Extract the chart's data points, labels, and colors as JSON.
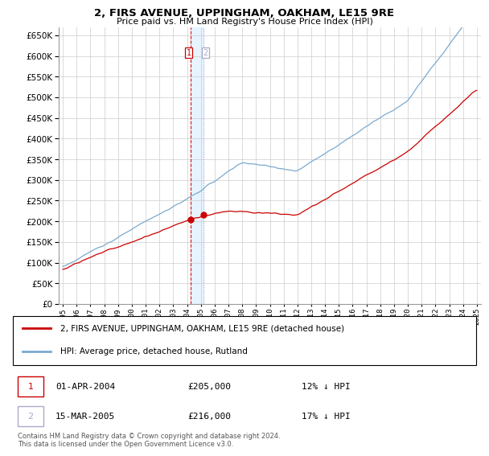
{
  "title": "2, FIRS AVENUE, UPPINGHAM, OAKHAM, LE15 9RE",
  "subtitle": "Price paid vs. HM Land Registry's House Price Index (HPI)",
  "legend_line1": "2, FIRS AVENUE, UPPINGHAM, OAKHAM, LE15 9RE (detached house)",
  "legend_line2": "HPI: Average price, detached house, Rutland",
  "purchase1_date_str": "01-APR-2004",
  "purchase1_price_str": "£205,000",
  "purchase1_hpi_str": "12% ↓ HPI",
  "purchase1_year": 2004.25,
  "purchase1_price": 205000,
  "purchase2_date_str": "15-MAR-2005",
  "purchase2_price_str": "£216,000",
  "purchase2_hpi_str": "17% ↓ HPI",
  "purchase2_year": 2005.21,
  "purchase2_price": 216000,
  "footnote": "Contains HM Land Registry data © Crown copyright and database right 2024.\nThis data is licensed under the Open Government Licence v3.0.",
  "line_color_property": "#cc0000",
  "line_color_hpi": "#7aaad0",
  "vline1_color": "#cc0000",
  "vline2_color": "#aaaacc",
  "shade_color": "#ddeeff",
  "ylim_min": 0,
  "ylim_max": 670000,
  "ytick_step": 50000,
  "start_year": 1995,
  "end_year": 2025
}
